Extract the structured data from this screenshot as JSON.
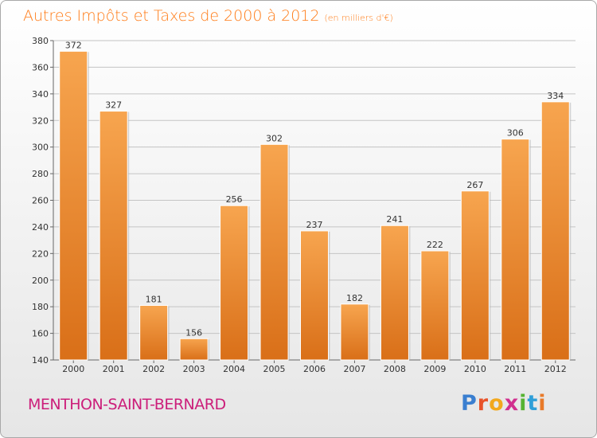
{
  "chart_data": {
    "type": "bar",
    "title": "Autres Impôts et Taxes de 2000 à 2012",
    "subtitle": "(en milliers d'€)",
    "xlabel": "",
    "ylabel": "",
    "categories": [
      "2000",
      "2001",
      "2002",
      "2003",
      "2004",
      "2005",
      "2006",
      "2007",
      "2008",
      "2009",
      "2010",
      "2011",
      "2012"
    ],
    "values": [
      372,
      327,
      181,
      156,
      256,
      302,
      237,
      182,
      241,
      222,
      267,
      306,
      334
    ],
    "ylim": [
      140,
      380
    ],
    "yticks": [
      140,
      160,
      180,
      200,
      220,
      240,
      260,
      280,
      300,
      320,
      340,
      360,
      380
    ],
    "grid": true,
    "legend": "none",
    "bar_color": "#f5a04a"
  },
  "footer": {
    "commune": "MENTHON-SAINT-BERNARD",
    "logo_letters": [
      "P",
      "r",
      "o",
      "x",
      "i",
      "t",
      "i"
    ],
    "logo_colors": [
      "#3a7fd0",
      "#e8532a",
      "#f2a81d",
      "#d12f8f",
      "#56b332",
      "#2f9fd8",
      "#e87a2a"
    ]
  }
}
